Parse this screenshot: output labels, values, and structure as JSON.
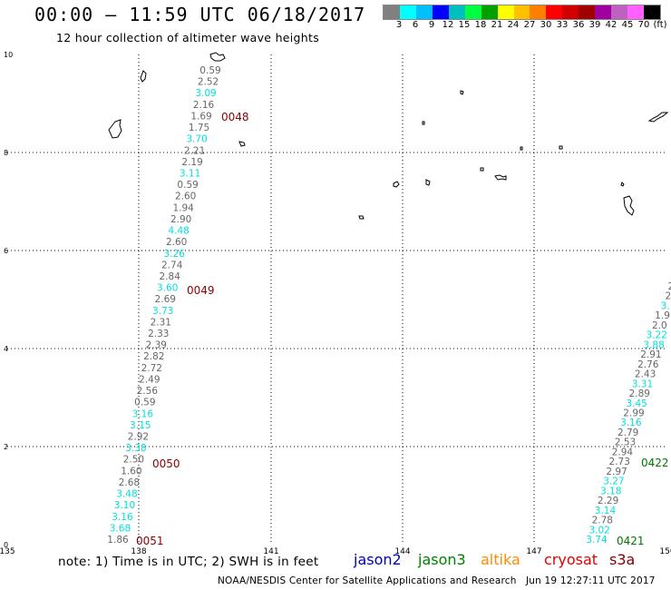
{
  "header": {
    "title": "00:00 – 11:59 UTC 06/18/2017",
    "subtitle": "12 hour collection of altimeter wave heights"
  },
  "legend": {
    "colors": [
      "#808080",
      "#00ffff",
      "#00bfff",
      "#0000ff",
      "#00bfbf",
      "#00ff40",
      "#00a000",
      "#ffff00",
      "#ffc000",
      "#ff8000",
      "#ff0000",
      "#d00000",
      "#a00000",
      "#a000a0",
      "#c060c0",
      "#ff60ff",
      "#000000"
    ],
    "labels": [
      "3",
      "6",
      "9",
      "12",
      "15",
      "18",
      "21",
      "24",
      "27",
      "30",
      "33",
      "36",
      "39",
      "42",
      "45",
      "70",
      "(ft)"
    ]
  },
  "axes": {
    "x_ticks": [
      "135",
      "138",
      "141",
      "144",
      "147",
      "150"
    ],
    "y_ticks": [
      "0",
      "2",
      "4",
      "6",
      "8",
      "10"
    ]
  },
  "tracks": [
    {
      "name": "left-track",
      "labels": [
        {
          "v": "0.59",
          "c": "gray"
        },
        {
          "v": "2.52",
          "c": "gray"
        },
        {
          "v": "3.09",
          "c": "cyan"
        },
        {
          "v": "2.16",
          "c": "gray"
        },
        {
          "v": "1.69",
          "c": "gray"
        },
        {
          "v": "1.75",
          "c": "gray"
        },
        {
          "v": "3.70",
          "c": "cyan"
        },
        {
          "v": "2.21",
          "c": "gray"
        },
        {
          "v": "2.19",
          "c": "gray"
        },
        {
          "v": "3.11",
          "c": "cyan"
        },
        {
          "v": "0.59",
          "c": "gray"
        },
        {
          "v": "2.60",
          "c": "gray"
        },
        {
          "v": "1.94",
          "c": "gray"
        },
        {
          "v": "2.90",
          "c": "gray"
        },
        {
          "v": "4.48",
          "c": "cyan"
        },
        {
          "v": "2.60",
          "c": "gray"
        },
        {
          "v": "3.26",
          "c": "cyan"
        },
        {
          "v": "2.74",
          "c": "gray"
        },
        {
          "v": "2.84",
          "c": "gray"
        },
        {
          "v": "3.60",
          "c": "cyan"
        },
        {
          "v": "2.69",
          "c": "gray"
        },
        {
          "v": "3.73",
          "c": "cyan"
        },
        {
          "v": "2.31",
          "c": "gray"
        },
        {
          "v": "2.33",
          "c": "gray"
        },
        {
          "v": "2.39",
          "c": "gray"
        },
        {
          "v": "2.82",
          "c": "gray"
        },
        {
          "v": "2.72",
          "c": "gray"
        },
        {
          "v": "2.49",
          "c": "gray"
        },
        {
          "v": "2.56",
          "c": "gray"
        },
        {
          "v": "0.59",
          "c": "gray"
        },
        {
          "v": "3.16",
          "c": "cyan"
        },
        {
          "v": "3.15",
          "c": "cyan"
        },
        {
          "v": "2.92",
          "c": "gray"
        },
        {
          "v": "3.38",
          "c": "cyan"
        },
        {
          "v": "2.50",
          "c": "gray"
        },
        {
          "v": "1.60",
          "c": "gray"
        },
        {
          "v": "2.68",
          "c": "gray"
        },
        {
          "v": "3.48",
          "c": "cyan"
        },
        {
          "v": "3.10",
          "c": "cyan"
        },
        {
          "v": "3.16",
          "c": "cyan"
        },
        {
          "v": "3.68",
          "c": "cyan"
        },
        {
          "v": "1.86",
          "c": "gray"
        }
      ]
    },
    {
      "name": "right-track",
      "labels": [
        {
          "v": "2",
          "c": "gray"
        },
        {
          "v": "2",
          "c": "gray"
        },
        {
          "v": "3.",
          "c": "cyan"
        },
        {
          "v": "1.9",
          "c": "gray"
        },
        {
          "v": "2.0",
          "c": "gray"
        },
        {
          "v": "3.22",
          "c": "cyan"
        },
        {
          "v": "3.88",
          "c": "cyan"
        },
        {
          "v": "2.91",
          "c": "gray"
        },
        {
          "v": "2.76",
          "c": "gray"
        },
        {
          "v": "2.43",
          "c": "gray"
        },
        {
          "v": "3.31",
          "c": "cyan"
        },
        {
          "v": "2.89",
          "c": "gray"
        },
        {
          "v": "3.45",
          "c": "cyan"
        },
        {
          "v": "2.99",
          "c": "gray"
        },
        {
          "v": "3.16",
          "c": "cyan"
        },
        {
          "v": "2.79",
          "c": "gray"
        },
        {
          "v": "2.53",
          "c": "gray"
        },
        {
          "v": "2.94",
          "c": "gray"
        },
        {
          "v": "2.73",
          "c": "gray"
        },
        {
          "v": "2.97",
          "c": "gray"
        },
        {
          "v": "3.27",
          "c": "cyan"
        },
        {
          "v": "3.18",
          "c": "cyan"
        },
        {
          "v": "2.29",
          "c": "gray"
        },
        {
          "v": "3.14",
          "c": "cyan"
        },
        {
          "v": "2.78",
          "c": "gray"
        },
        {
          "v": "3.02",
          "c": "cyan"
        },
        {
          "v": "3.74",
          "c": "cyan"
        }
      ]
    }
  ],
  "time_stamps": [
    {
      "v": "0048",
      "c": "darkred"
    },
    {
      "v": "0049",
      "c": "darkred"
    },
    {
      "v": "0050",
      "c": "darkred"
    },
    {
      "v": "0051",
      "c": "darkred"
    },
    {
      "v": "0422",
      "c": "green"
    },
    {
      "v": "0421",
      "c": "green"
    }
  ],
  "footer": {
    "note": "note: 1) Time is in UTC; 2) SWH is in feet",
    "satellites": [
      {
        "name": "jason2",
        "color": "#0000c0"
      },
      {
        "name": "jason3",
        "color": "#008000"
      },
      {
        "name": "altika",
        "color": "#ff8c00"
      },
      {
        "name": "cryosat",
        "color": "#e00000"
      },
      {
        "name": "s3a",
        "color": "#800000"
      }
    ],
    "credit": "NOAA/NESDIS Center for Satellite Applications and Research",
    "timestamp": "Jun 19 12:27:11 UTC 2017"
  }
}
